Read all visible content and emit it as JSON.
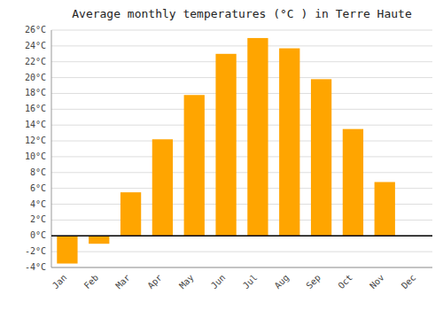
{
  "chart_data": {
    "type": "bar",
    "title": "Average monthly temperatures (°C ) in Terre Haute",
    "categories": [
      "Jan",
      "Feb",
      "Mar",
      "Apr",
      "May",
      "Jun",
      "Jul",
      "Aug",
      "Sep",
      "Oct",
      "Nov",
      "Dec"
    ],
    "values": [
      -3.5,
      -1.0,
      5.5,
      12.2,
      17.8,
      23.0,
      25.0,
      23.7,
      19.8,
      13.5,
      6.8,
      0.0
    ],
    "color": "#FFA500",
    "ylim": [
      -4,
      26
    ],
    "yticks": [
      {
        "value": -4,
        "label": "-4°C"
      },
      {
        "value": -2,
        "label": "-2°C"
      },
      {
        "value": 0,
        "label": "0°C"
      },
      {
        "value": 2,
        "label": "2°C"
      },
      {
        "value": 4,
        "label": "4°C"
      },
      {
        "value": 6,
        "label": "6°C"
      },
      {
        "value": 8,
        "label": "8°C"
      },
      {
        "value": 10,
        "label": "10°C"
      },
      {
        "value": 12,
        "label": "12°C"
      },
      {
        "value": 14,
        "label": "14°C"
      },
      {
        "value": 16,
        "label": "16°C"
      },
      {
        "value": 18,
        "label": "18°C"
      },
      {
        "value": 20,
        "label": "20°C"
      },
      {
        "value": 22,
        "label": "22°C"
      },
      {
        "value": 24,
        "label": "24°C"
      },
      {
        "value": 26,
        "label": "26°C"
      }
    ],
    "grid": true
  }
}
